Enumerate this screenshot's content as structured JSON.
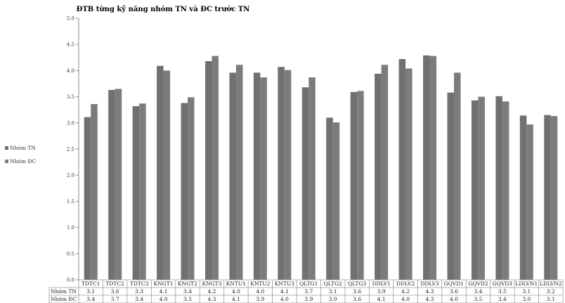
{
  "chart_data": {
    "type": "bar",
    "title": "ĐTB  từng kỹ năng nhóm TN và ĐC trước TN",
    "categories": [
      "TDTC1",
      "TDTC2",
      "TDTC3",
      "KNGT1",
      "KNGT2",
      "KNGT3",
      "KNTU1",
      "KNTU2",
      "KNTU3",
      "QLTG1",
      "QLTG2",
      "QLTG3",
      "DDLV1",
      "DDLV2",
      "DDLV3",
      "GQVD1",
      "GQVD2",
      "GQVD3",
      "LDLVN1",
      "LDLVN2"
    ],
    "series": [
      {
        "name": "Nhóm TN",
        "values": [
          3.11,
          3.63,
          3.32,
          4.09,
          3.38,
          4.18,
          3.96,
          3.96,
          4.07,
          3.68,
          3.1,
          3.59,
          3.94,
          4.22,
          4.29,
          3.58,
          3.43,
          3.51,
          3.14,
          3.15
        ],
        "labels": [
          "3.1",
          "3.6",
          "3.3",
          "4.1",
          "3.4",
          "4.2",
          "4.0",
          "4.0",
          "4.1",
          "3.7",
          "3.1",
          "3.6",
          "3.9",
          "4.2",
          "4.3",
          "3.6",
          "3.4",
          "3.5",
          "3.1",
          "3.2"
        ]
      },
      {
        "name": "Nhóm ĐC",
        "values": [
          3.36,
          3.65,
          3.37,
          4.0,
          3.49,
          4.28,
          4.11,
          3.87,
          4.01,
          3.87,
          3.01,
          3.61,
          4.11,
          4.04,
          4.28,
          3.96,
          3.5,
          3.41,
          2.97,
          3.13
        ],
        "labels": [
          "3.4",
          "3.7",
          "3.4",
          "4.0",
          "3.5",
          "4.3",
          "4.1",
          "3.9",
          "4.0",
          "3.9",
          "3.0",
          "3.6",
          "4.1",
          "4.0",
          "4.3",
          "4.0",
          "3.5",
          "3.4",
          "3.0",
          "3.1"
        ]
      }
    ],
    "ylim": [
      0,
      5
    ],
    "yticks": [
      "0.0",
      "0.5",
      "1.0",
      "1.5",
      "2.0",
      "2.5",
      "3.0",
      "3.5",
      "4.0",
      "4.5",
      "5.0"
    ],
    "legend": "left",
    "data_table": true,
    "colors": {
      "bar_tn": "#707070",
      "bar_dc": "#7c7c7c",
      "axis": "#8c8c8c",
      "table_border": "#9a9a9a"
    }
  }
}
